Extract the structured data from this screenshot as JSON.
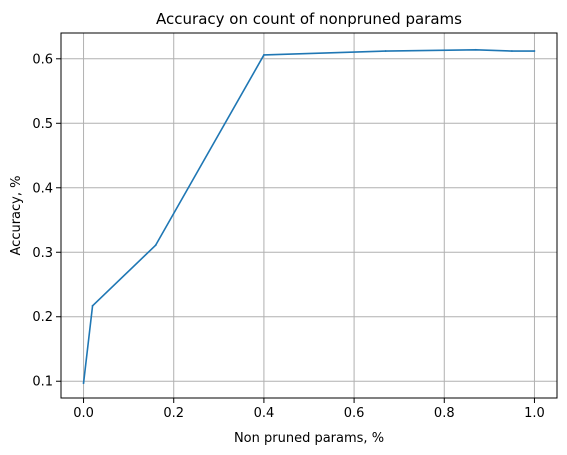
{
  "chart_data": {
    "type": "line",
    "title": "Accuracy on count of nonpruned params",
    "xlabel": "Non pruned params, %",
    "ylabel": "Accuracy, %",
    "xlim": [
      -0.05,
      1.05
    ],
    "ylim": [
      0.074,
      0.64
    ],
    "xticks": [
      0.0,
      0.2,
      0.4,
      0.6,
      0.8,
      1.0
    ],
    "xtick_labels": [
      "0.0",
      "0.2",
      "0.4",
      "0.6",
      "0.8",
      "1.0"
    ],
    "yticks": [
      0.1,
      0.2,
      0.3,
      0.4,
      0.5,
      0.6
    ],
    "ytick_labels": [
      "0.1",
      "0.2",
      "0.3",
      "0.4",
      "0.5",
      "0.6"
    ],
    "grid": true,
    "series": [
      {
        "color": "#1f77b4",
        "x": [
          0.0,
          0.02,
          0.16,
          0.4,
          0.67,
          0.87,
          0.95,
          1.0
        ],
        "y": [
          0.097,
          0.217,
          0.311,
          0.606,
          0.612,
          0.614,
          0.612,
          0.612
        ]
      }
    ]
  }
}
